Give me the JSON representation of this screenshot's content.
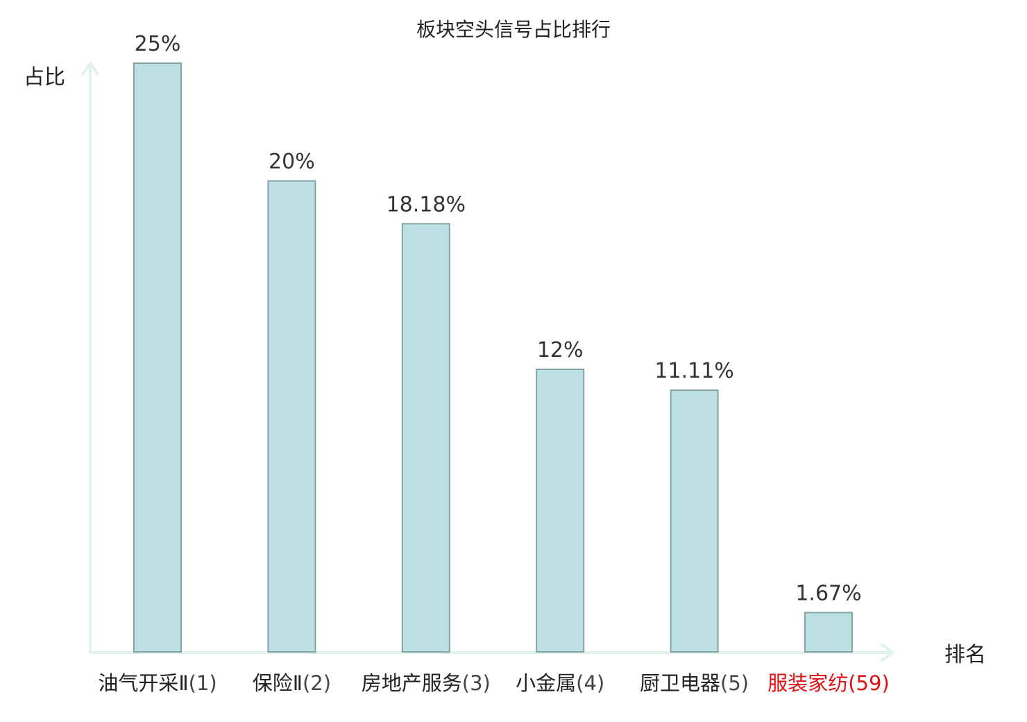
{
  "chart_data": {
    "type": "bar",
    "title": "板块空头信号占比排行",
    "ylabel": "占比",
    "xlabel": "排名",
    "ylim": [
      0,
      25
    ],
    "grid": false,
    "legend": "none",
    "categories": [
      {
        "name": "油气开采Ⅱ",
        "rank": "(1)",
        "value": 25,
        "label": "25%"
      },
      {
        "name": "保险Ⅱ",
        "rank": "(2)",
        "value": 20,
        "label": "20%"
      },
      {
        "name": "房地产服务",
        "rank": "(3)",
        "value": 18.18,
        "label": "18.18%"
      },
      {
        "name": "小金属",
        "rank": "(4)",
        "value": 12,
        "label": "12%"
      },
      {
        "name": "厨卫电器",
        "rank": "(5)",
        "value": 11.11,
        "label": "11.11%"
      },
      {
        "name": "服装家纺",
        "rank": "(59)",
        "value": 1.67,
        "label": "1.67%",
        "highlight": true
      }
    ],
    "colors": {
      "bar_fill": "#bde0e3",
      "bar_stroke": "#85a3a6",
      "axis": "#e0f2ef",
      "text": "#222222",
      "value_text": "#333333",
      "rank_text": "#444444",
      "highlight": "#e01010"
    }
  }
}
